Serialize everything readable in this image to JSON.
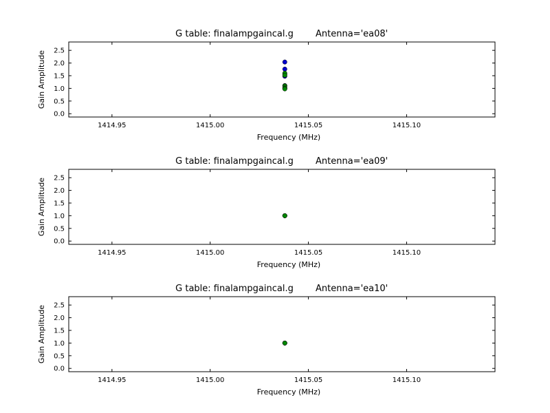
{
  "chart_data": [
    {
      "type": "scatter",
      "title_left": "G table: finalampgaincal.g",
      "title_right": "Antenna='ea08'",
      "xlabel": "Frequency (MHz)",
      "ylabel": "Gain Amplitude",
      "xlim": [
        1414.928,
        1415.145
      ],
      "ylim": [
        -0.13,
        2.83
      ],
      "xticks": [
        "1414.95",
        "1415.00",
        "1415.05",
        "1415.10"
      ],
      "xtick_values": [
        1414.95,
        1415.0,
        1415.05,
        1415.1
      ],
      "yticks": [
        "0.0",
        "0.5",
        "1.0",
        "1.5",
        "2.0",
        "2.5"
      ],
      "ytick_values": [
        0.0,
        0.5,
        1.0,
        1.5,
        2.0,
        2.5
      ],
      "legend": "none",
      "grid": false,
      "series": [
        {
          "color": "#0000cc",
          "x": [
            1415.038,
            1415.038,
            1415.038,
            1415.038,
            1415.038,
            1415.038
          ],
          "y": [
            2.04,
            1.76,
            1.56,
            1.48,
            1.11,
            1.0
          ]
        },
        {
          "color": "#008800",
          "x": [
            1415.038,
            1415.038,
            1415.038,
            1415.038,
            1415.038,
            1415.038
          ],
          "y": [
            1.6,
            1.52,
            1.1,
            1.05,
            1.0,
            0.98
          ]
        }
      ]
    },
    {
      "type": "scatter",
      "title_left": "G table: finalampgaincal.g",
      "title_right": "Antenna='ea09'",
      "xlabel": "Frequency (MHz)",
      "ylabel": "Gain Amplitude",
      "xlim": [
        1414.928,
        1415.145
      ],
      "ylim": [
        -0.13,
        2.83
      ],
      "xticks": [
        "1414.95",
        "1415.00",
        "1415.05",
        "1415.10"
      ],
      "xtick_values": [
        1414.95,
        1415.0,
        1415.05,
        1415.1
      ],
      "yticks": [
        "0.0",
        "0.5",
        "1.0",
        "1.5",
        "2.0",
        "2.5"
      ],
      "ytick_values": [
        0.0,
        0.5,
        1.0,
        1.5,
        2.0,
        2.5
      ],
      "legend": "none",
      "grid": false,
      "series": [
        {
          "color": "#0000cc",
          "x": [
            1415.038,
            1415.038
          ],
          "y": [
            1.0,
            1.0
          ]
        },
        {
          "color": "#008800",
          "x": [
            1415.038,
            1415.038
          ],
          "y": [
            1.0,
            1.0
          ]
        }
      ]
    },
    {
      "type": "scatter",
      "title_left": "G table: finalampgaincal.g",
      "title_right": "Antenna='ea10'",
      "xlabel": "Frequency (MHz)",
      "ylabel": "Gain Amplitude",
      "xlim": [
        1414.928,
        1415.145
      ],
      "ylim": [
        -0.13,
        2.83
      ],
      "xticks": [
        "1414.95",
        "1415.00",
        "1415.05",
        "1415.10"
      ],
      "xtick_values": [
        1414.95,
        1415.0,
        1415.05,
        1415.1
      ],
      "yticks": [
        "0.0",
        "0.5",
        "1.0",
        "1.5",
        "2.0",
        "2.5"
      ],
      "ytick_values": [
        0.0,
        0.5,
        1.0,
        1.5,
        2.0,
        2.5
      ],
      "legend": "none",
      "grid": false,
      "series": [
        {
          "color": "#0000cc",
          "x": [
            1415.038,
            1415.038
          ],
          "y": [
            1.0,
            1.0
          ]
        },
        {
          "color": "#008800",
          "x": [
            1415.038,
            1415.038
          ],
          "y": [
            1.0,
            1.0
          ]
        }
      ]
    }
  ]
}
